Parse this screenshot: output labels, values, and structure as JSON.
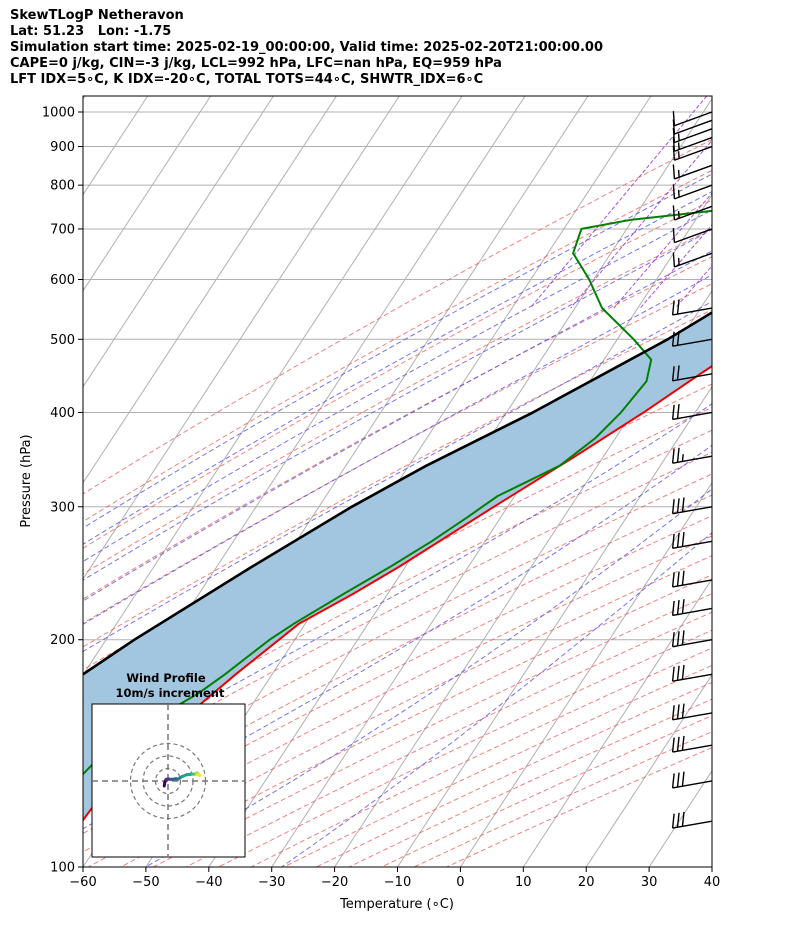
{
  "header": {
    "line1": "SkewTLogP Netheravon",
    "line2": "Lat: 51.23   Lon: -1.75",
    "line3": "Simulation start time: 2025-02-19_00:00:00, Valid time: 2025-02-20T21:00:00.00",
    "line4": "CAPE=0 j/kg, CIN=-3 j/kg, LCL=992 hPa, LFC=nan hPa, EQ=959 hPa",
    "line5": "LFT IDX=5∘C, K IDX=-20∘C, TOTAL TOTS=44∘C, SHWTR_IDX=6∘C"
  },
  "chart_data": {
    "type": "line",
    "xlabel": "Temperature (∘C)",
    "ylabel": "Pressure (hPa)",
    "xlim": [
      -60,
      40
    ],
    "ylim": [
      1050,
      100
    ],
    "yscale": "log",
    "xticks": [
      "−60",
      "−50",
      "−40",
      "−30",
      "−20",
      "−10",
      "0",
      "10",
      "20",
      "30",
      "40"
    ],
    "xtick_values": [
      -60,
      -50,
      -40,
      -30,
      -20,
      -10,
      0,
      10,
      20,
      30,
      40
    ],
    "yticks": [
      "100",
      "200",
      "300",
      "400",
      "500",
      "600",
      "700",
      "800",
      "900",
      "1000"
    ],
    "ytick_values": [
      100,
      200,
      300,
      400,
      500,
      600,
      700,
      800,
      900,
      1000
    ],
    "grid": true,
    "colors": {
      "temperature": "#ee0000",
      "dewpoint": "#008000",
      "parcel": "#000000",
      "cape_fill": "#a3c6e0",
      "dry_adiabat": "#ee5555",
      "moist_adiabat": "#4444ee",
      "mixing_ratio": "#9933cc",
      "grid": "#b0b0b0"
    },
    "series": [
      {
        "points": [
          [
            1000,
            11.5
          ],
          [
            980,
            11.0
          ],
          [
            960,
            11.8
          ],
          [
            940,
            11.9
          ],
          [
            920,
            11.6
          ],
          [
            900,
            11.3
          ],
          [
            850,
            10.7
          ],
          [
            800,
            10.9
          ],
          [
            750,
            10.9
          ],
          [
            700,
            9.5
          ],
          [
            650,
            6.5
          ],
          [
            600,
            2.0
          ],
          [
            550,
            -3.0
          ],
          [
            500,
            -8.5
          ],
          [
            450,
            -13.2
          ],
          [
            400,
            -18.2
          ],
          [
            350,
            -24.5
          ],
          [
            300,
            -32.2
          ],
          [
            250,
            -41.0
          ],
          [
            230,
            -45.5
          ],
          [
            220,
            -48.2
          ],
          [
            210,
            -51.0
          ],
          [
            200,
            -52.5
          ],
          [
            180,
            -55.8
          ],
          [
            160,
            -59.0
          ],
          [
            150,
            -60.3
          ],
          [
            140,
            -62.0
          ],
          [
            130,
            -63.8
          ],
          [
            120,
            -64.7
          ],
          [
            110,
            -65.1
          ],
          [
            100,
            -65.6
          ]
        ]
      },
      {
        "points": [
          [
            1000,
            11.5
          ],
          [
            980,
            9.6
          ],
          [
            960,
            7.0
          ],
          [
            940,
            5.0
          ],
          [
            920,
            3.5
          ],
          [
            900,
            2.6
          ],
          [
            850,
            1.0
          ],
          [
            800,
            -3.0
          ],
          [
            760,
            -17.6
          ],
          [
            740,
            -28.0
          ],
          [
            720,
            -40.2
          ],
          [
            700,
            -47.2
          ],
          [
            650,
            -46.0
          ],
          [
            600,
            -40.7
          ],
          [
            550,
            -35.7
          ],
          [
            500,
            -27.4
          ],
          [
            470,
            -22.5
          ],
          [
            440,
            -21.0
          ],
          [
            400,
            -21.8
          ],
          [
            370,
            -23.2
          ],
          [
            340,
            -26.0
          ],
          [
            310,
            -32.7
          ],
          [
            290,
            -35.4
          ],
          [
            270,
            -38.5
          ],
          [
            250,
            -42.4
          ],
          [
            230,
            -47.0
          ],
          [
            210,
            -51.8
          ],
          [
            200,
            -54.0
          ],
          [
            180,
            -57.5
          ],
          [
            170,
            -59.7
          ],
          [
            160,
            -63.0
          ],
          [
            150,
            -66.7
          ],
          [
            140,
            -68.8
          ],
          [
            130,
            -70.0
          ],
          [
            120,
            -71.0
          ],
          [
            110,
            -72.0
          ],
          [
            100,
            -73.0
          ]
        ]
      },
      {
        "points": [
          [
            1000,
            11.5
          ],
          [
            900,
            6.8
          ],
          [
            800,
            1.2
          ],
          [
            700,
            -4.8
          ],
          [
            600,
            -12.5
          ],
          [
            500,
            -22.0
          ],
          [
            400,
            -35.8
          ],
          [
            340,
            -47.2
          ],
          [
            300,
            -54.8
          ],
          [
            250,
            -64.4
          ],
          [
            200,
            -75.5
          ],
          [
            150,
            -88.0
          ],
          [
            120,
            -96.5
          ],
          [
            100,
            -103.0
          ]
        ]
      }
    ],
    "winds": [
      {
        "p": 1000,
        "speed_kt": 10,
        "dir": 250
      },
      {
        "p": 975,
        "speed_kt": 10,
        "dir": 250
      },
      {
        "p": 950,
        "speed_kt": 15,
        "dir": 250
      },
      {
        "p": 925,
        "speed_kt": 15,
        "dir": 250
      },
      {
        "p": 900,
        "speed_kt": 15,
        "dir": 250
      },
      {
        "p": 850,
        "speed_kt": 15,
        "dir": 250
      },
      {
        "p": 800,
        "speed_kt": 15,
        "dir": 250
      },
      {
        "p": 750,
        "speed_kt": 15,
        "dir": 250
      },
      {
        "p": 700,
        "speed_kt": 10,
        "dir": 250
      },
      {
        "p": 650,
        "speed_kt": 15,
        "dir": 250
      },
      {
        "p": 550,
        "speed_kt": 20,
        "dir": 260
      },
      {
        "p": 500,
        "speed_kt": 20,
        "dir": 260
      },
      {
        "p": 450,
        "speed_kt": 20,
        "dir": 260
      },
      {
        "p": 400,
        "speed_kt": 20,
        "dir": 260
      },
      {
        "p": 350,
        "speed_kt": 25,
        "dir": 260
      },
      {
        "p": 300,
        "speed_kt": 30,
        "dir": 260
      },
      {
        "p": 270,
        "speed_kt": 30,
        "dir": 260
      },
      {
        "p": 240,
        "speed_kt": 30,
        "dir": 260
      },
      {
        "p": 220,
        "speed_kt": 30,
        "dir": 260
      },
      {
        "p": 200,
        "speed_kt": 30,
        "dir": 260
      },
      {
        "p": 180,
        "speed_kt": 30,
        "dir": 260
      },
      {
        "p": 160,
        "speed_kt": 30,
        "dir": 260
      },
      {
        "p": 145,
        "speed_kt": 30,
        "dir": 260
      },
      {
        "p": 130,
        "speed_kt": 30,
        "dir": 260
      },
      {
        "p": 115,
        "speed_kt": 30,
        "dir": 260
      }
    ]
  },
  "hodograph": {
    "title": "Wind Profile",
    "subtitle": "10m/s increment",
    "rings_mps": [
      10,
      20,
      30
    ],
    "points_uv": [
      [
        -3,
        -4
      ],
      [
        -2.6,
        -1.2
      ],
      [
        -1.5,
        1.3
      ],
      [
        0.5,
        1.5
      ],
      [
        2.5,
        1.3
      ],
      [
        6.5,
        1.8
      ],
      [
        8.2,
        1.5
      ],
      [
        11,
        3.5
      ],
      [
        15,
        5
      ],
      [
        19.5,
        5.5
      ],
      [
        22,
        5.5
      ],
      [
        24,
        5.5
      ],
      [
        23,
        6.5
      ],
      [
        25.5,
        4.5
      ],
      [
        23,
        5
      ]
    ]
  }
}
